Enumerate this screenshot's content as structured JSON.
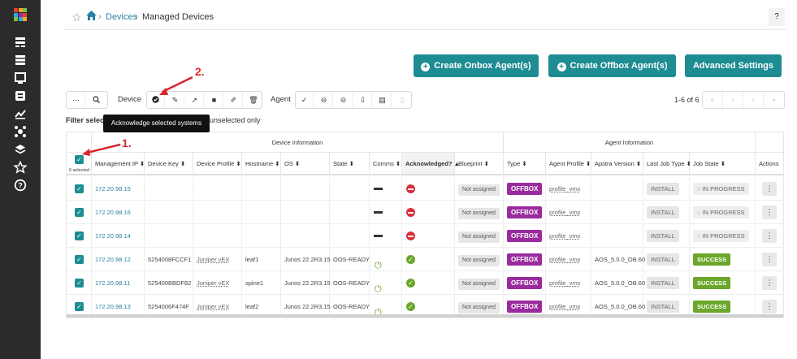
{
  "breadcrumb": {
    "devices": "Devices",
    "separator": "›",
    "managed": "Managed Devices"
  },
  "help_label": "?",
  "buttons": {
    "create_onbox": "Create Onbox Agent(s)",
    "create_offbox": "Create Offbox Agent(s)",
    "advanced": "Advanced Settings"
  },
  "toolbar": {
    "device_label": "Device",
    "agent_label": "Agent",
    "more": "···",
    "search_glyph": "⌕"
  },
  "pager": {
    "text": "1-6 of 6"
  },
  "filter": {
    "label": "Filter selecte",
    "right": "unselected only"
  },
  "tooltip": "Acknowledge selected systems",
  "annotations": {
    "one": "1.",
    "two": "2."
  },
  "table": {
    "group_device": "Device Information",
    "group_agent": "Agent Information",
    "selected_count": "6 selected",
    "headers": {
      "mgmt": "Management IP ⬍",
      "key": "Device Key ⬍",
      "profile": "Device Profile ⬍",
      "hostname": "Hostname ⬍",
      "os": "OS ⬍",
      "state": "State ⬍",
      "comms": "Comms ⬍",
      "ack": "Acknowledged? ▲",
      "blueprint": "Blueprint ⬍",
      "type": "Type ⬍",
      "agent_profile": "Agent Profile ⬍",
      "apstra": "Apstra Version ⬍",
      "last_job": "Last Job Type ⬍",
      "job_state": "Job State ⬍",
      "actions": "Actions"
    },
    "rows": [
      {
        "ip": "172.20.98.15",
        "key": "",
        "profile": "",
        "hostname": "",
        "os": "",
        "state": "",
        "comms": "dash",
        "ack": "no",
        "blueprint": "Not assigned",
        "type": "OFFBOX",
        "agent_profile": "profile_vmx",
        "apstra": "",
        "last_job": "INSTALL",
        "job_state": "IN PROGRESS",
        "job_kind": "progress"
      },
      {
        "ip": "172.20.98.16",
        "key": "",
        "profile": "",
        "hostname": "",
        "os": "",
        "state": "",
        "comms": "dash",
        "ack": "no",
        "blueprint": "Not assigned",
        "type": "OFFBOX",
        "agent_profile": "profile_vmx",
        "apstra": "",
        "last_job": "INSTALL",
        "job_state": "IN PROGRESS",
        "job_kind": "progress"
      },
      {
        "ip": "172.20.98.14",
        "key": "",
        "profile": "",
        "hostname": "",
        "os": "",
        "state": "",
        "comms": "dash",
        "ack": "no",
        "blueprint": "Not assigned",
        "type": "OFFBOX",
        "agent_profile": "profile_vmx",
        "apstra": "",
        "last_job": "INSTALL",
        "job_state": "IN PROGRESS",
        "job_kind": "progress"
      },
      {
        "ip": "172.20.98.12",
        "key": "5254008FCCF1",
        "profile": "Juniper vEX",
        "hostname": "leaf1",
        "os": "Junos 22.2R3.15",
        "state": "OOS-READY",
        "comms": "plug",
        "ack": "yes",
        "blueprint": "Not assigned",
        "type": "OFFBOX",
        "agent_profile": "profile_vmx",
        "apstra": "AOS_5.0.0_OB.60",
        "last_job": "INSTALL",
        "job_state": "SUCCESS",
        "job_kind": "success"
      },
      {
        "ip": "172.20.98.11",
        "key": "525400BBDF82",
        "profile": "Juniper vEX",
        "hostname": "spine1",
        "os": "Junos 22.2R3.15",
        "state": "OOS-READY",
        "comms": "plug",
        "ack": "yes",
        "blueprint": "Not assigned",
        "type": "OFFBOX",
        "agent_profile": "profile_vmx",
        "apstra": "AOS_5.0.0_OB.60",
        "last_job": "INSTALL",
        "job_state": "SUCCESS",
        "job_kind": "success"
      },
      {
        "ip": "172.20.98.13",
        "key": "5254006F474F",
        "profile": "Juniper vEX",
        "hostname": "leaf2",
        "os": "Junos 22.2R3.15",
        "state": "OOS-READY",
        "comms": "plug",
        "ack": "yes",
        "blueprint": "Not assigned",
        "type": "OFFBOX",
        "agent_profile": "profile_vmx",
        "apstra": "AOS_5.0.0_OB.60",
        "last_job": "INSTALL",
        "job_state": "SUCCESS",
        "job_kind": "success"
      }
    ]
  }
}
